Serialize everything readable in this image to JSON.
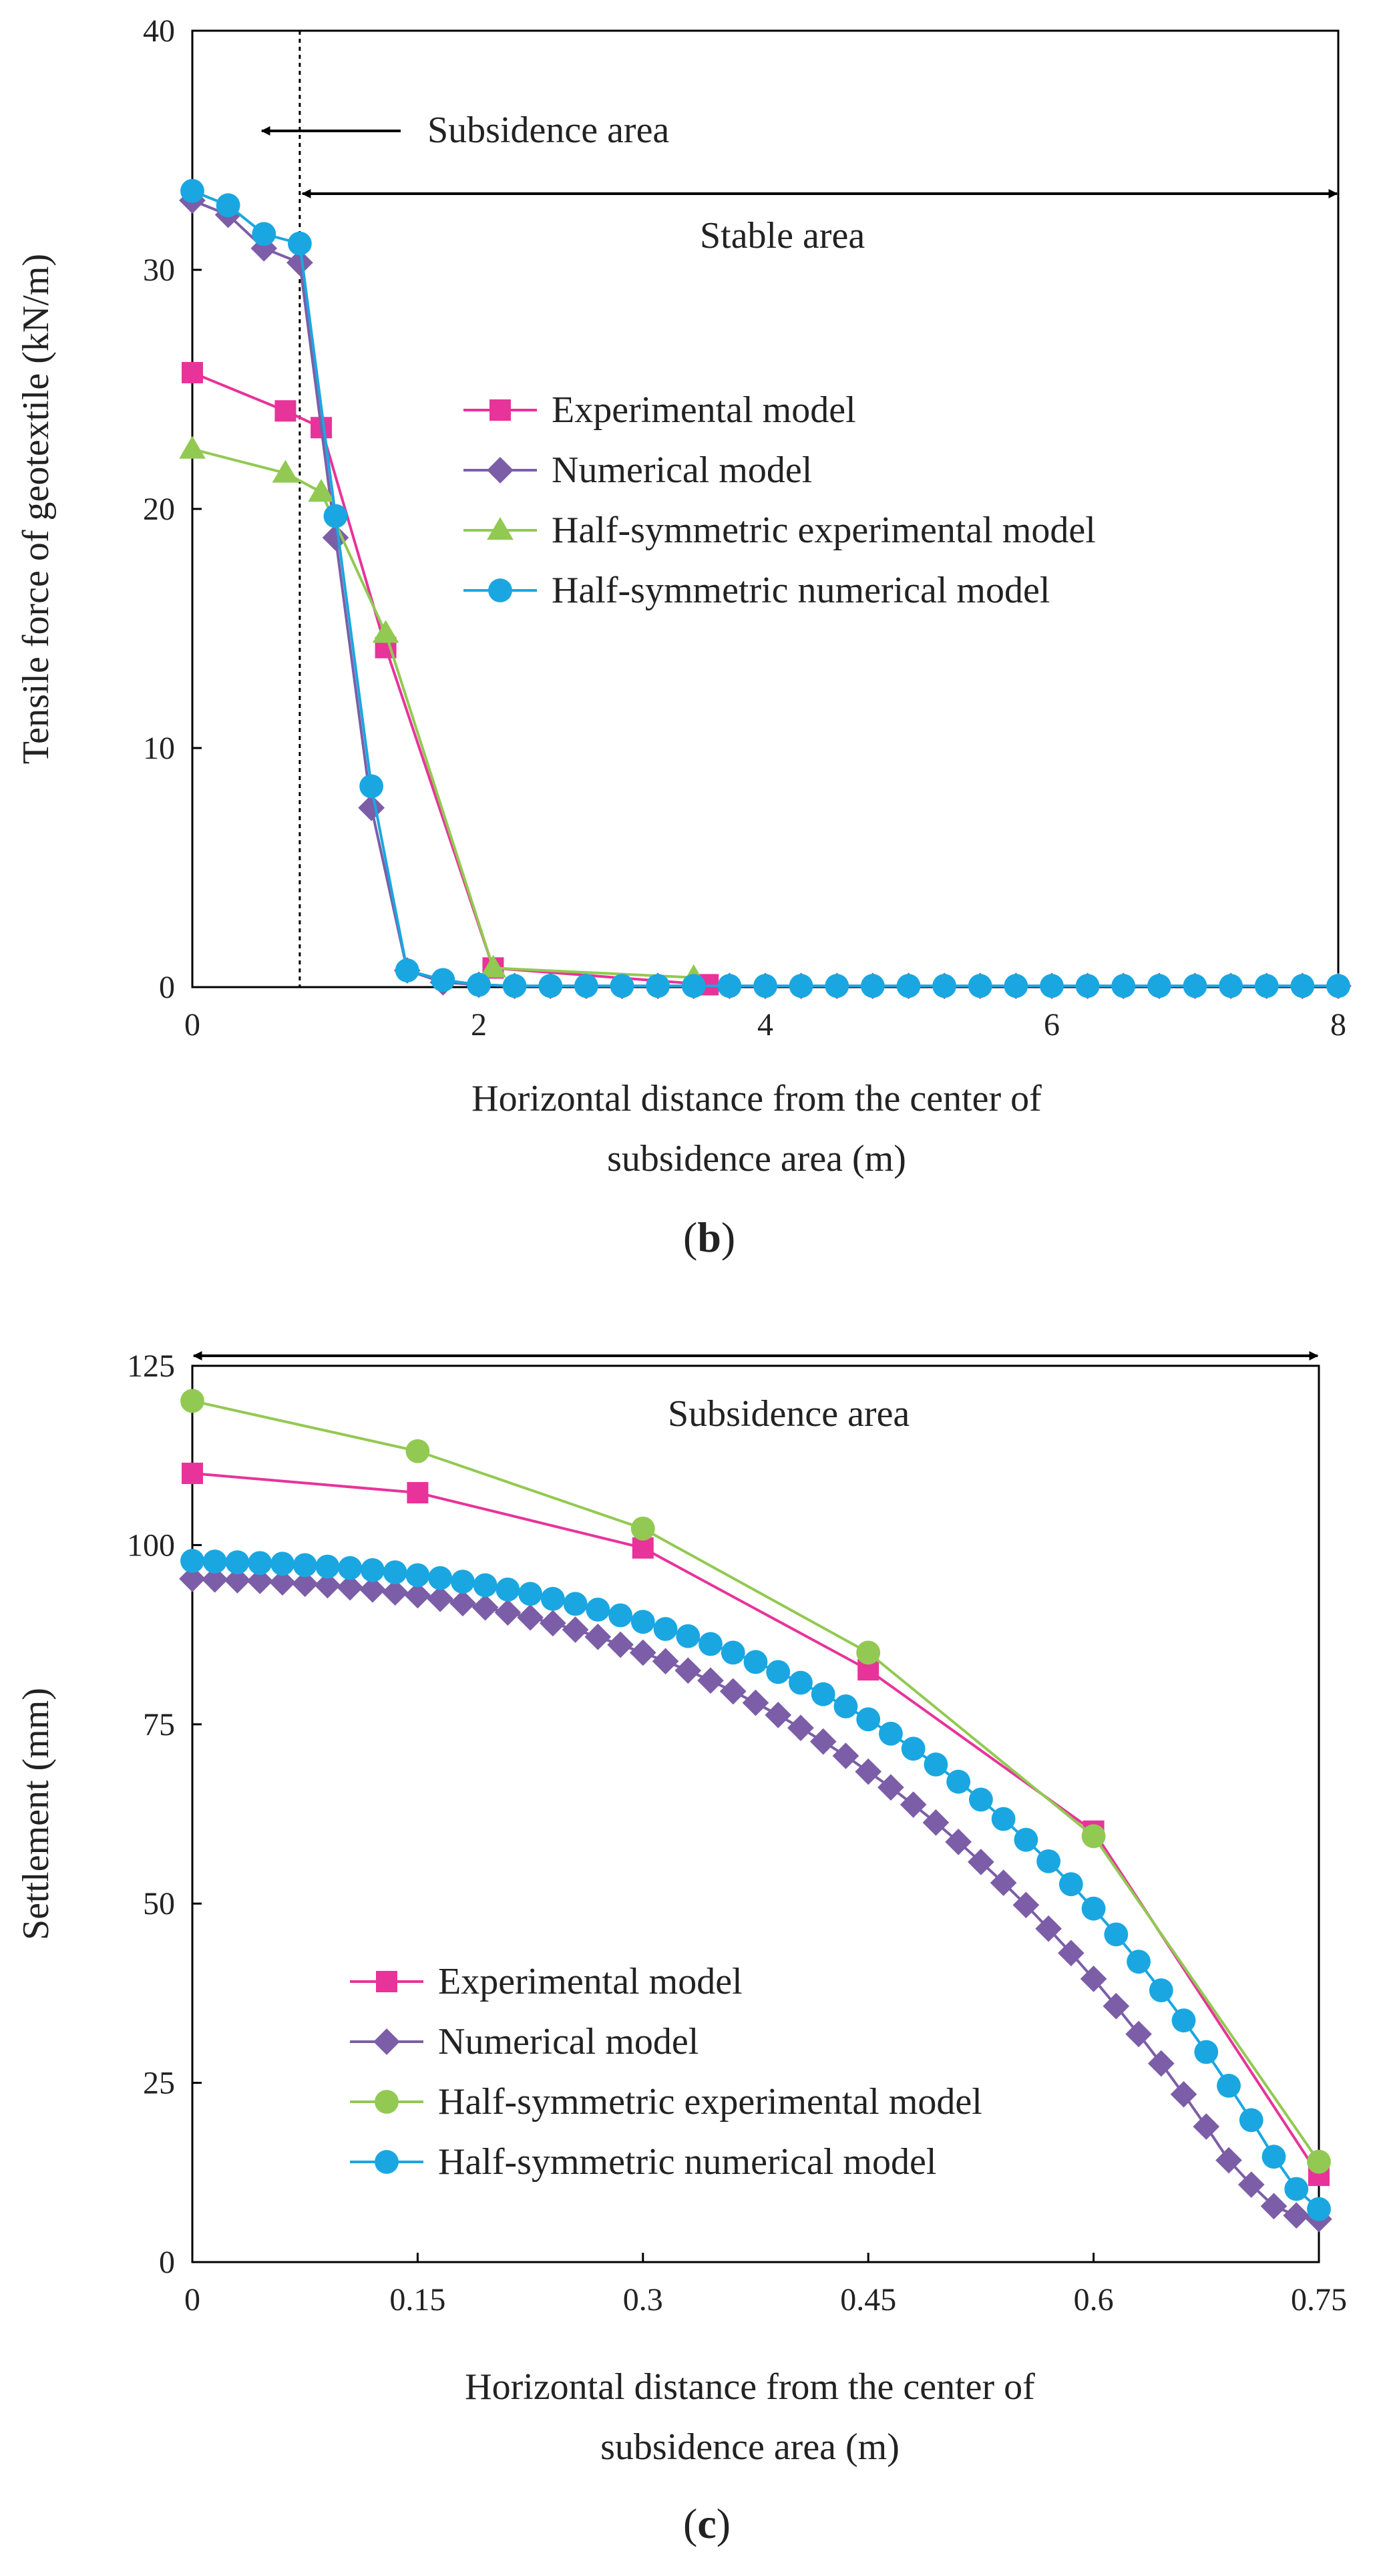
{
  "colors": {
    "experimental": "#E8339A",
    "numerical": "#7B5EA7",
    "half_experimental": "#92C952",
    "half_numerical": "#1AA7E1",
    "axis": "#000000"
  },
  "chart_data": [
    {
      "id": "b",
      "type": "line",
      "panel_label": {
        "open": "(",
        "letter": "b",
        "close": ")"
      },
      "xlabel_line1": "Horizontal distance from the center of",
      "xlabel_line2": "subsidence area (m)",
      "ylabel": "Tensile force of geotextile (kN/m)",
      "xlim": [
        0,
        8
      ],
      "ylim": [
        0,
        40
      ],
      "xticks": [
        0,
        2,
        4,
        6,
        8
      ],
      "yticks": [
        0,
        10,
        20,
        30,
        40
      ],
      "xtick_labels": [
        "0",
        "2",
        "4",
        "6",
        "8"
      ],
      "ytick_labels": [
        "0",
        "10",
        "20",
        "30",
        "40"
      ],
      "boundary_x": 0.75,
      "annotations": {
        "subsidence": "Subsidence area",
        "stable": "Stable area"
      },
      "series": [
        {
          "name": "Experimental model",
          "color_key": "experimental",
          "marker": "square",
          "x": [
            0,
            0.65,
            0.9,
            1.35,
            2.1,
            3.6
          ],
          "y": [
            25.7,
            24.1,
            23.4,
            14.2,
            0.8,
            0.1
          ]
        },
        {
          "name": "Numerical model",
          "color_key": "numerical",
          "marker": "diamond",
          "x": [
            0,
            0.25,
            0.5,
            0.75,
            1.0,
            1.25,
            1.5,
            1.75,
            2.0,
            2.25,
            2.5,
            2.75,
            3.0,
            3.25,
            3.5,
            3.75,
            4.0,
            4.25,
            4.5,
            4.75,
            5.0,
            5.25,
            5.5,
            5.75,
            6.0,
            6.25,
            6.5,
            6.75,
            7.0,
            7.25,
            7.5,
            7.75,
            8.0
          ],
          "y": [
            32.9,
            32.3,
            30.9,
            30.3,
            18.8,
            7.5,
            0.7,
            0.2,
            0.1,
            0.05,
            0.05,
            0.05,
            0.05,
            0.05,
            0.05,
            0.05,
            0.05,
            0.05,
            0.05,
            0.05,
            0.05,
            0.05,
            0.05,
            0.05,
            0.05,
            0.05,
            0.05,
            0.05,
            0.05,
            0.05,
            0.05,
            0.05,
            0.05
          ]
        },
        {
          "name": "Half-symmetric experimental model",
          "color_key": "half_experimental",
          "marker": "triangle",
          "x": [
            0,
            0.65,
            0.9,
            1.35,
            2.1,
            3.5
          ],
          "y": [
            22.5,
            21.5,
            20.7,
            14.8,
            0.8,
            0.4
          ]
        },
        {
          "name": "Half-symmetric numerical model",
          "color_key": "half_numerical",
          "marker": "circle",
          "x": [
            0,
            0.25,
            0.5,
            0.75,
            1.0,
            1.25,
            1.5,
            1.75,
            2.0,
            2.25,
            2.5,
            2.75,
            3.0,
            3.25,
            3.5,
            3.75,
            4.0,
            4.25,
            4.5,
            4.75,
            5.0,
            5.25,
            5.5,
            5.75,
            6.0,
            6.25,
            6.5,
            6.75,
            7.0,
            7.25,
            7.5,
            7.75,
            8.0
          ],
          "y": [
            33.3,
            32.7,
            31.5,
            31.1,
            19.7,
            8.4,
            0.7,
            0.3,
            0.1,
            0.05,
            0.05,
            0.05,
            0.05,
            0.05,
            0.05,
            0.05,
            0.05,
            0.05,
            0.05,
            0.05,
            0.05,
            0.05,
            0.05,
            0.05,
            0.05,
            0.05,
            0.05,
            0.05,
            0.05,
            0.05,
            0.05,
            0.05,
            0.05
          ]
        }
      ]
    },
    {
      "id": "c",
      "type": "line",
      "panel_label": {
        "open": "(",
        "letter": "c",
        "close": ")"
      },
      "xlabel_line1": "Horizontal distance from the center of",
      "xlabel_line2": "subsidence area (m)",
      "ylabel": "Settlement (mm)",
      "xlim": [
        0,
        0.75
      ],
      "ylim": [
        0,
        125
      ],
      "xticks": [
        0,
        0.15,
        0.3,
        0.45,
        0.6,
        0.75
      ],
      "yticks": [
        0,
        25,
        50,
        75,
        100,
        125
      ],
      "xtick_labels": [
        "0",
        "0.15",
        "0.3",
        "0.45",
        "0.6",
        "0.75"
      ],
      "ytick_labels": [
        "0",
        "25",
        "50",
        "75",
        "100",
        "125"
      ],
      "annotations": {
        "subsidence": "Subsidence area"
      },
      "series": [
        {
          "name": "Experimental model",
          "color_key": "experimental",
          "marker": "square",
          "x": [
            0,
            0.15,
            0.3,
            0.45,
            0.6,
            0.75
          ],
          "y": [
            110,
            107.3,
            99.6,
            82.6,
            60.1,
            12.1
          ]
        },
        {
          "name": "Numerical model",
          "color_key": "numerical",
          "marker": "diamond",
          "x": [
            0,
            0.015,
            0.03,
            0.045,
            0.06,
            0.075,
            0.09,
            0.105,
            0.12,
            0.135,
            0.15,
            0.165,
            0.18,
            0.195,
            0.21,
            0.225,
            0.24,
            0.255,
            0.27,
            0.285,
            0.3,
            0.315,
            0.33,
            0.345,
            0.36,
            0.375,
            0.39,
            0.405,
            0.42,
            0.435,
            0.45,
            0.465,
            0.48,
            0.495,
            0.51,
            0.525,
            0.54,
            0.555,
            0.57,
            0.585,
            0.6,
            0.615,
            0.63,
            0.645,
            0.66,
            0.675,
            0.69,
            0.705,
            0.72,
            0.735,
            0.75
          ],
          "y": [
            95.3,
            95.2,
            95.1,
            95.0,
            94.8,
            94.6,
            94.4,
            94.1,
            93.8,
            93.4,
            93.0,
            92.5,
            91.9,
            91.3,
            90.6,
            89.9,
            89.1,
            88.2,
            87.2,
            86.1,
            85.0,
            83.8,
            82.5,
            81.1,
            79.6,
            78.0,
            76.3,
            74.5,
            72.6,
            70.6,
            68.4,
            66.2,
            63.8,
            61.3,
            58.6,
            55.8,
            52.9,
            49.8,
            46.5,
            43.1,
            39.5,
            35.7,
            31.8,
            27.7,
            23.4,
            18.9,
            14.2,
            10.8,
            7.8,
            6.5,
            6.0
          ]
        },
        {
          "name": "Half-symmetric experimental model",
          "color_key": "half_experimental",
          "marker": "circle",
          "x": [
            0,
            0.15,
            0.3,
            0.45,
            0.6,
            0.75
          ],
          "y": [
            120.1,
            113.1,
            102.3,
            85.0,
            59.4,
            14.0
          ]
        },
        {
          "name": "Half-symmetric numerical model",
          "color_key": "half_numerical",
          "marker": "circle",
          "x": [
            0,
            0.015,
            0.03,
            0.045,
            0.06,
            0.075,
            0.09,
            0.105,
            0.12,
            0.135,
            0.15,
            0.165,
            0.18,
            0.195,
            0.21,
            0.225,
            0.24,
            0.255,
            0.27,
            0.285,
            0.3,
            0.315,
            0.33,
            0.345,
            0.36,
            0.375,
            0.39,
            0.405,
            0.42,
            0.435,
            0.45,
            0.465,
            0.48,
            0.495,
            0.51,
            0.525,
            0.54,
            0.555,
            0.57,
            0.585,
            0.6,
            0.615,
            0.63,
            0.645,
            0.66,
            0.675,
            0.69,
            0.705,
            0.72,
            0.735,
            0.75
          ],
          "y": [
            97.8,
            97.7,
            97.6,
            97.5,
            97.4,
            97.2,
            97.0,
            96.8,
            96.5,
            96.2,
            95.8,
            95.4,
            94.9,
            94.4,
            93.8,
            93.2,
            92.5,
            91.8,
            91.0,
            90.2,
            89.3,
            88.3,
            87.3,
            86.2,
            85.0,
            83.7,
            82.3,
            80.8,
            79.2,
            77.5,
            75.7,
            73.7,
            71.6,
            69.4,
            67.0,
            64.5,
            61.8,
            58.9,
            55.9,
            52.7,
            49.3,
            45.7,
            41.9,
            37.9,
            33.7,
            29.3,
            24.6,
            19.8,
            14.7,
            10.2,
            7.4
          ]
        }
      ]
    }
  ]
}
